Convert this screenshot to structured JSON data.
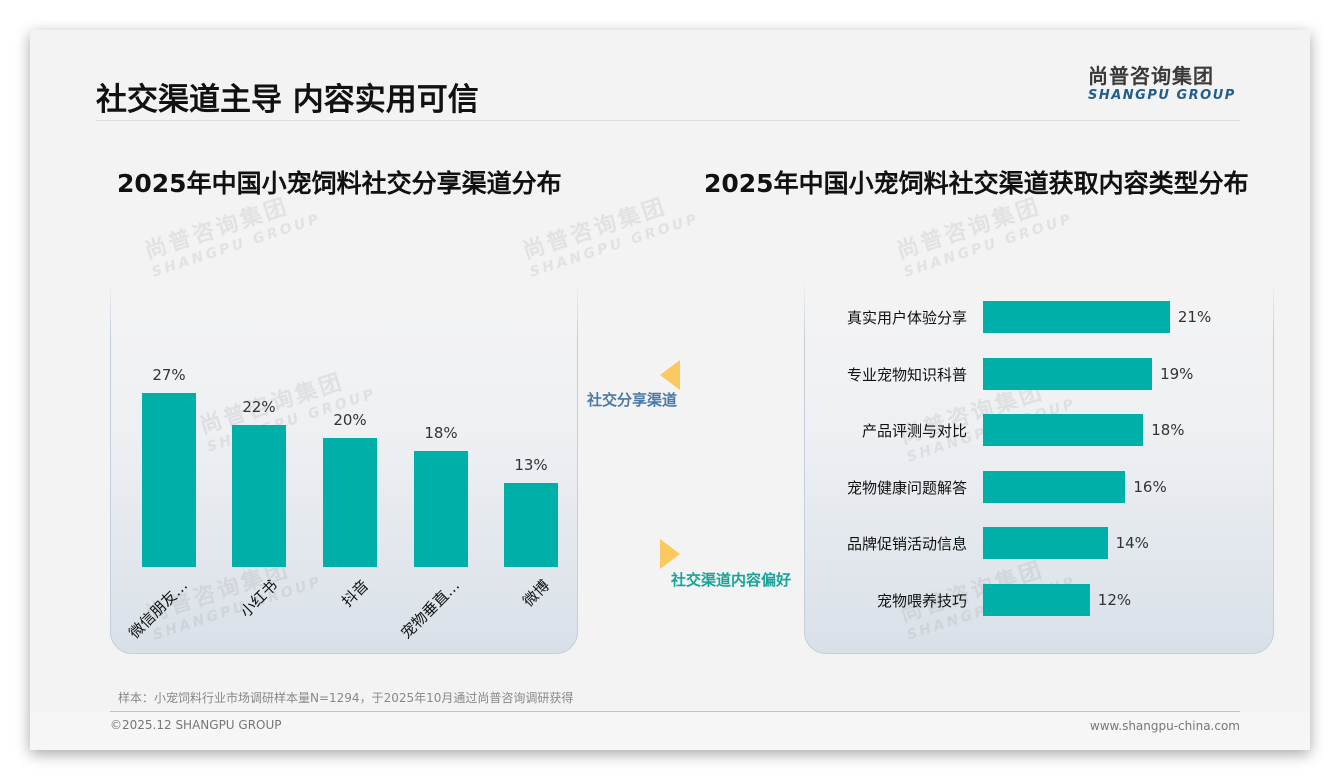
{
  "page": {
    "title": "社交渠道主导 内容实用可信",
    "logo_cn": "尚普咨询集团",
    "logo_en": "SHANGPU GROUP",
    "watermark_cn": "尚普咨询集团",
    "watermark_en": "SHANGPU GROUP"
  },
  "connectors": {
    "left_label": "社交分享渠道",
    "right_label": "社交渠道内容偏好",
    "triangle_color": "#fcc860"
  },
  "footer": {
    "note": "样本：小宠饲料行业市场调研样本量N=1294，于2025年10月通过尚普咨询调研获得",
    "copyright": "©2025.12 SHANGPU GROUP",
    "website": "www.shangpu-china.com"
  },
  "chart_data": [
    {
      "type": "bar",
      "orientation": "vertical",
      "title": "2025年中国小宠饲料社交分享渠道分布",
      "categories": [
        "微信朋友…",
        "小红书",
        "抖音",
        "宠物垂直…",
        "微博"
      ],
      "values": [
        27,
        22,
        20,
        18,
        13
      ],
      "labels": [
        "27%",
        "22%",
        "20%",
        "18%",
        "13%"
      ],
      "unit": "%",
      "xlabel": "",
      "ylabel": "",
      "grid": false,
      "legend": null,
      "color": "#00b0a8"
    },
    {
      "type": "bar",
      "orientation": "horizontal",
      "title": "2025年中国小宠饲料社交渠道获取内容类型分布",
      "categories": [
        "真实用户体验分享",
        "专业宠物知识科普",
        "产品评测与对比",
        "宠物健康问题解答",
        "品牌促销活动信息",
        "宠物喂养技巧"
      ],
      "values": [
        21,
        19,
        18,
        16,
        14,
        12
      ],
      "labels": [
        "21%",
        "19%",
        "18%",
        "16%",
        "14%",
        "12%"
      ],
      "unit": "%",
      "xlabel": "",
      "ylabel": "",
      "grid": false,
      "legend": null,
      "color": "#00b0a8"
    }
  ]
}
